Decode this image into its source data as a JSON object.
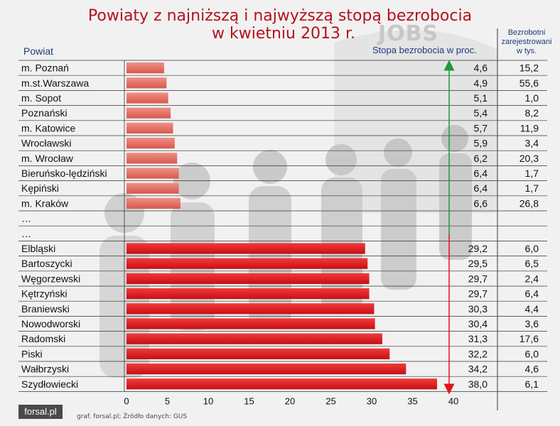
{
  "title_line1": "Powiaty z najniższą i najwyższą stopą bezrobocia",
  "title_line2": "w kwietniu 2013 r.",
  "header_powiat": "Powiat",
  "header_rate": "Stopa bezrobocia w proc.",
  "header_registered": "Bezrobotni zarejestrowani w tys.",
  "watermark": "JOBS",
  "logo_text": "forsal.pl",
  "source_text": "graf. forsal.pl; Źródło danych: GUS",
  "colors": {
    "low": "#e07368",
    "high": "#e0151c",
    "title": "#b3121c",
    "header": "#1f3a7a"
  },
  "chart_data": {
    "type": "bar",
    "orientation": "horizontal",
    "xlim": [
      0,
      40
    ],
    "xticks": [
      "0",
      "5",
      "10",
      "15",
      "20",
      "25",
      "30",
      "35",
      "40"
    ],
    "xtick_values": [
      0,
      5,
      10,
      15,
      20,
      25,
      30,
      35,
      40
    ],
    "rows": [
      {
        "name": "m. Poznań",
        "rate": 4.6,
        "rate_label": "4,6",
        "registered": "15,2",
        "group": "low"
      },
      {
        "name": "m.st.Warszawa",
        "rate": 4.9,
        "rate_label": "4,9",
        "registered": "55,6",
        "group": "low"
      },
      {
        "name": "m. Sopot",
        "rate": 5.1,
        "rate_label": "5,1",
        "registered": "1,0",
        "group": "low"
      },
      {
        "name": "Poznański",
        "rate": 5.4,
        "rate_label": "5,4",
        "registered": "8,2",
        "group": "low"
      },
      {
        "name": "m. Katowice",
        "rate": 5.7,
        "rate_label": "5,7",
        "registered": "11,9",
        "group": "low"
      },
      {
        "name": "Wrocławski",
        "rate": 5.9,
        "rate_label": "5,9",
        "registered": "3,4",
        "group": "low"
      },
      {
        "name": "m. Wrocław",
        "rate": 6.2,
        "rate_label": "6,2",
        "registered": "20,3",
        "group": "low"
      },
      {
        "name": "Bieruńsko-lędziński",
        "rate": 6.4,
        "rate_label": "6,4",
        "registered": "1,7",
        "group": "low"
      },
      {
        "name": "Kępiński",
        "rate": 6.4,
        "rate_label": "6,4",
        "registered": "1,7",
        "group": "low"
      },
      {
        "name": "m. Kraków",
        "rate": 6.6,
        "rate_label": "6,6",
        "registered": "26,8",
        "group": "low"
      },
      {
        "name": "…",
        "rate": null,
        "rate_label": "",
        "registered": "",
        "group": "gap"
      },
      {
        "name": "…",
        "rate": null,
        "rate_label": "",
        "registered": "",
        "group": "gap"
      },
      {
        "name": "Elbląski",
        "rate": 29.2,
        "rate_label": "29,2",
        "registered": "6,0",
        "group": "high"
      },
      {
        "name": "Bartoszycki",
        "rate": 29.5,
        "rate_label": "29,5",
        "registered": "6,5",
        "group": "high"
      },
      {
        "name": "Węgorzewski",
        "rate": 29.7,
        "rate_label": "29,7",
        "registered": "2,4",
        "group": "high"
      },
      {
        "name": "Kętrzyński",
        "rate": 29.7,
        "rate_label": "29,7",
        "registered": "6,4",
        "group": "high"
      },
      {
        "name": "Braniewski",
        "rate": 30.3,
        "rate_label": "30,3",
        "registered": "4,4",
        "group": "high"
      },
      {
        "name": "Nowodworski",
        "rate": 30.4,
        "rate_label": "30,4",
        "registered": "3,6",
        "group": "high"
      },
      {
        "name": "Radomski",
        "rate": 31.3,
        "rate_label": "31,3",
        "registered": "17,6",
        "group": "high"
      },
      {
        "name": "Piski",
        "rate": 32.2,
        "rate_label": "32,2",
        "registered": "6,0",
        "group": "high"
      },
      {
        "name": "Wałbrzyski",
        "rate": 34.2,
        "rate_label": "34,2",
        "registered": "4,6",
        "group": "high"
      },
      {
        "name": "Szydłowiecki",
        "rate": 38.0,
        "rate_label": "38,0",
        "registered": "6,1",
        "group": "high"
      }
    ]
  }
}
